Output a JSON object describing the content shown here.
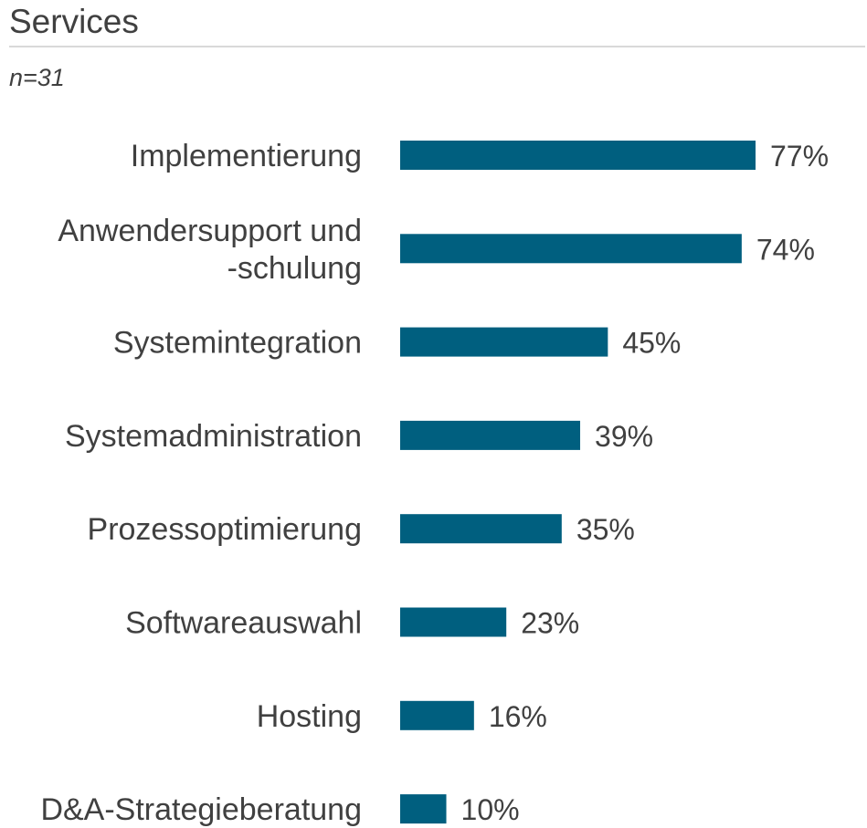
{
  "header": {
    "title": "Services",
    "subtitle": "n=31"
  },
  "colors": {
    "bar": "#005f7f",
    "text": "#404040",
    "rule": "#d9d9d9"
  },
  "chart_data": {
    "type": "bar",
    "orientation": "horizontal",
    "title": "Services",
    "subtitle": "n=31",
    "categories": [
      [
        "Implementierung"
      ],
      [
        "Anwendersupport und",
        "-schulung"
      ],
      [
        "Systemintegration"
      ],
      [
        "Systemadministration"
      ],
      [
        "Prozessoptimierung"
      ],
      [
        "Softwareauswahl"
      ],
      [
        "Hosting"
      ],
      [
        "D&A-Strategieberatung"
      ]
    ],
    "values": [
      77,
      74,
      45,
      39,
      35,
      23,
      16,
      10
    ],
    "value_labels": [
      "77%",
      "74%",
      "45%",
      "39%",
      "35%",
      "23%",
      "16%",
      "10%"
    ],
    "unit": "%",
    "xlim": [
      0,
      100
    ],
    "grid": false,
    "legend": "none"
  }
}
